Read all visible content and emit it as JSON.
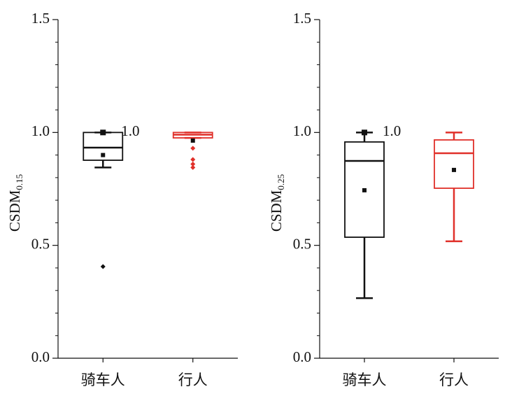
{
  "chart_data": [
    {
      "type": "box",
      "ylabel": "CSDM",
      "ylabel_sub": "0.15",
      "categories": [
        "骑车人",
        "行人"
      ],
      "boxes": [
        {
          "color": "#111111",
          "whislo": 0.845,
          "q1": 0.877,
          "med": 0.933,
          "q3": 1.0,
          "whishi": 1.0,
          "mean": 0.9,
          "max": 1.0,
          "outliers": [
            0.406
          ]
        },
        {
          "color": "#e0302a",
          "whislo": 0.976,
          "q1": 0.976,
          "med": 0.99,
          "q3": 1.0,
          "whishi": 1.0,
          "mean": 0.964,
          "outliers": [
            0.93,
            0.88,
            0.86,
            0.845
          ]
        }
      ],
      "annotation": {
        "text": "1.0",
        "category": 0,
        "y": 1.0
      },
      "ylim": [
        0,
        1.5
      ],
      "yticks": [
        {
          "value": 0,
          "label": "0.0"
        },
        0.5,
        {
          "value": 1,
          "label": "1.0"
        },
        1.5
      ],
      "yminor": [
        0.1,
        0.2,
        0.3,
        0.4,
        0.6,
        0.7,
        0.8,
        0.9,
        1.1,
        1.2,
        1.3,
        1.4
      ]
    },
    {
      "type": "box",
      "ylabel": "CSDM",
      "ylabel_sub": "0.25",
      "categories": [
        "骑车人",
        "行人"
      ],
      "boxes": [
        {
          "color": "#111111",
          "whislo": 0.266,
          "q1": 0.536,
          "med": 0.874,
          "q3": 0.958,
          "whishi": 1.0,
          "mean": 0.744,
          "max": 1.0,
          "outliers": []
        },
        {
          "color": "#e0302a",
          "whislo": 0.518,
          "q1": 0.753,
          "med": 0.908,
          "q3": 0.967,
          "whishi": 1.0,
          "mean": 0.834,
          "outliers": []
        }
      ],
      "annotation": {
        "text": "1.0",
        "category": 0,
        "y": 1.0
      },
      "ylim": [
        0,
        1.5
      ],
      "yticks": [
        {
          "value": 0,
          "label": "0.0"
        },
        0.5,
        {
          "value": 1,
          "label": "1.0"
        },
        1.5
      ],
      "yminor": [
        0.1,
        0.2,
        0.3,
        0.4,
        0.6,
        0.7,
        0.8,
        0.9,
        1.1,
        1.2,
        1.3,
        1.4
      ]
    }
  ]
}
